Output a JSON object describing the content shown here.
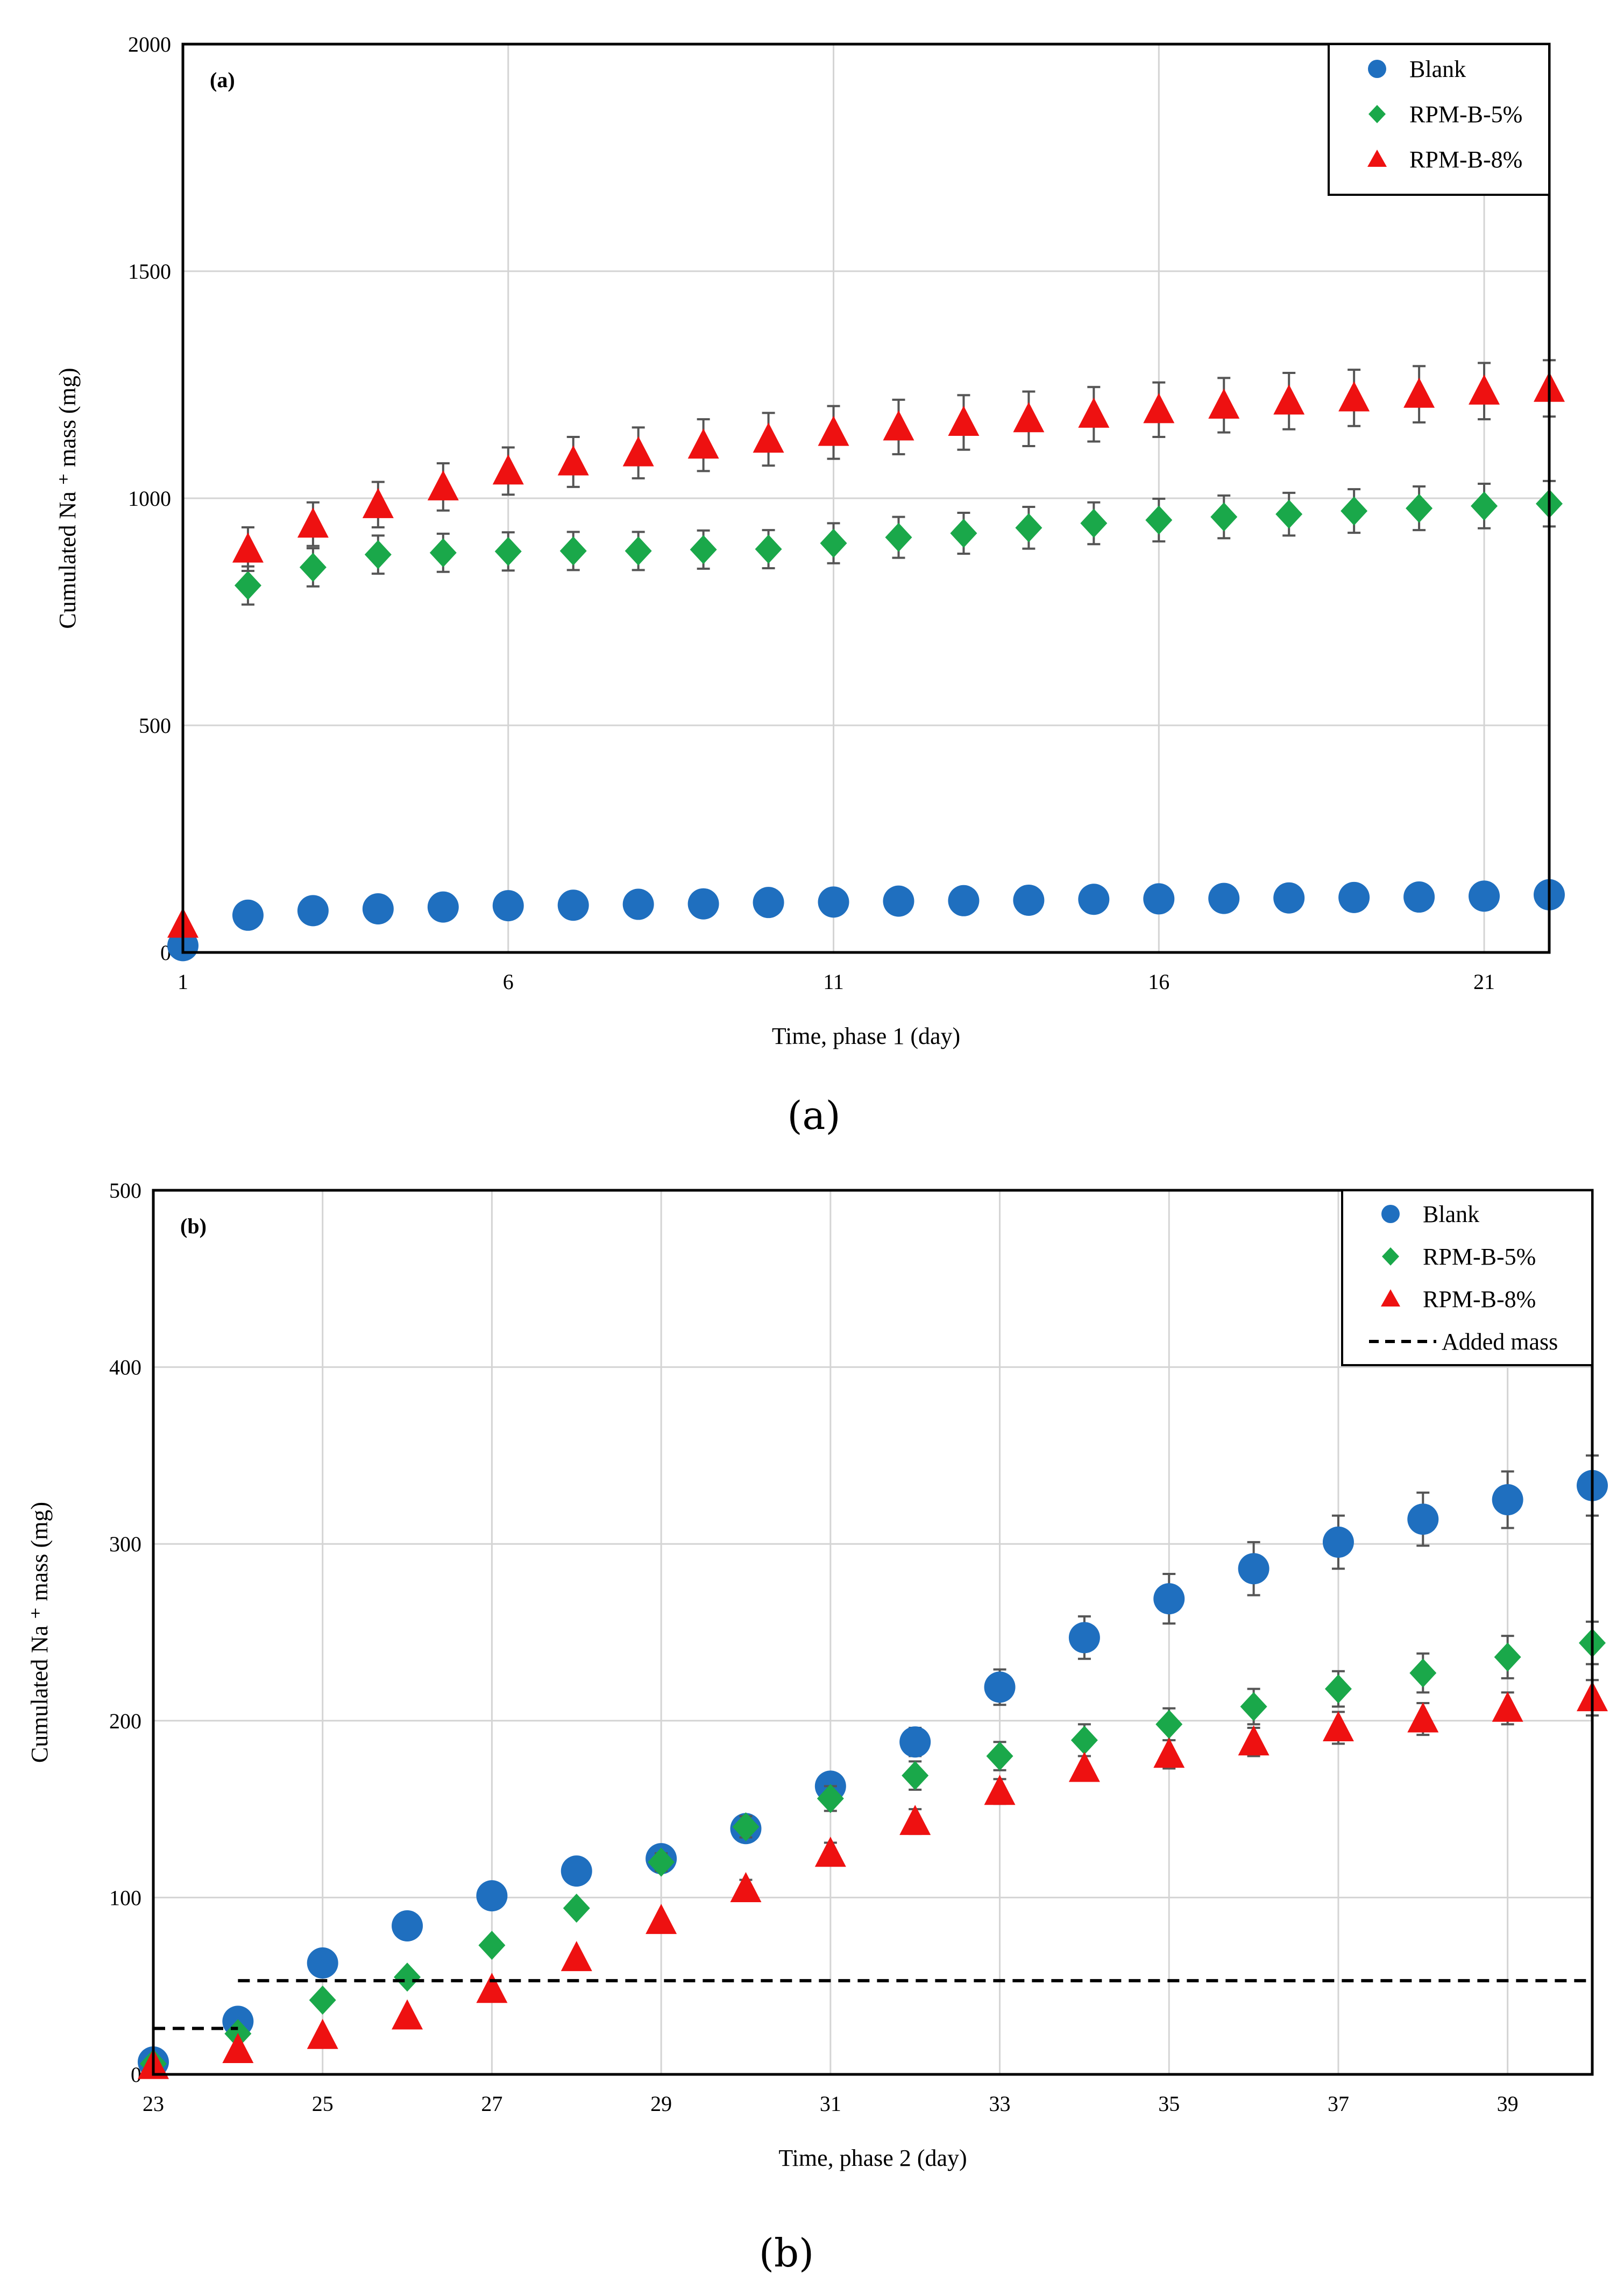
{
  "chart_data": [
    {
      "type": "scatter",
      "panel_label": "(a)",
      "caption": "(a)",
      "xlabel": "Time,  phase 1 (day)",
      "ylabel": "Cumulated Na ⁺ mass (mg)",
      "xlim": [
        1,
        22
      ],
      "ylim": [
        0,
        2000
      ],
      "xticks": [
        1,
        6,
        11,
        16,
        21
      ],
      "yticks": [
        0,
        500,
        1000,
        1500,
        2000
      ],
      "grid": true,
      "legend_position": "top-right",
      "series": [
        {
          "name": "Blank",
          "marker": "circle",
          "color": "#1f6fbf",
          "x": [
            1,
            2,
            3,
            4,
            5,
            6,
            7,
            8,
            9,
            10,
            11,
            12,
            13,
            14,
            15,
            16,
            17,
            18,
            19,
            20,
            21,
            22
          ],
          "y": [
            15,
            82,
            92,
            96,
            100,
            103,
            104,
            106,
            107,
            110,
            111,
            113,
            114,
            115,
            117,
            118,
            119,
            120,
            121,
            122,
            124,
            127
          ],
          "err": [
            0,
            0,
            0,
            0,
            0,
            0,
            0,
            0,
            0,
            0,
            0,
            0,
            0,
            0,
            0,
            0,
            0,
            0,
            0,
            0,
            0,
            0
          ]
        },
        {
          "name": "RPM-B-5%",
          "marker": "diamond",
          "color": "#1aa84a",
          "x": [
            2,
            3,
            4,
            5,
            6,
            7,
            8,
            9,
            10,
            11,
            12,
            13,
            14,
            15,
            16,
            17,
            18,
            19,
            20,
            21,
            22
          ],
          "y": [
            808,
            848,
            876,
            880,
            883,
            884,
            884,
            887,
            888,
            901,
            914,
            923,
            935,
            945,
            952,
            959,
            965,
            972,
            978,
            983,
            988
          ],
          "err": [
            42,
            42,
            42,
            42,
            42,
            42,
            42,
            42,
            42,
            44,
            45,
            45,
            46,
            46,
            47,
            47,
            47,
            48,
            48,
            49,
            50
          ]
        },
        {
          "name": "RPM-B-8%",
          "marker": "triangle",
          "color": "#ee1111",
          "x": [
            1,
            2,
            3,
            4,
            5,
            6,
            7,
            8,
            9,
            10,
            11,
            12,
            13,
            14,
            15,
            16,
            17,
            18,
            19,
            20,
            21,
            22
          ],
          "y": [
            62,
            888,
            943,
            986,
            1025,
            1060,
            1080,
            1100,
            1117,
            1130,
            1145,
            1157,
            1167,
            1175,
            1185,
            1195,
            1205,
            1214,
            1221,
            1229,
            1236,
            1242
          ],
          "err": [
            0,
            48,
            48,
            50,
            52,
            52,
            55,
            56,
            57,
            58,
            58,
            60,
            60,
            60,
            60,
            60,
            60,
            62,
            62,
            62,
            62,
            62
          ]
        }
      ]
    },
    {
      "type": "scatter",
      "panel_label": "(b)",
      "caption": "(b)",
      "xlabel": "Time,  phase 2 (day)",
      "ylabel": "Cumulated Na ⁺ mass (mg)",
      "xlim": [
        23,
        40
      ],
      "ylim": [
        0,
        500
      ],
      "xticks": [
        23,
        25,
        27,
        29,
        31,
        33,
        35,
        37,
        39
      ],
      "yticks": [
        0,
        100,
        200,
        300,
        400,
        500
      ],
      "grid": true,
      "legend_position": "top-right",
      "series": [
        {
          "name": "Blank",
          "marker": "circle",
          "color": "#1f6fbf",
          "x": [
            23,
            24,
            25,
            26,
            27,
            28,
            29,
            30,
            31,
            32,
            33,
            34,
            35,
            36,
            37,
            38,
            39,
            40
          ],
          "y": [
            7,
            30,
            63,
            84,
            101,
            115,
            122,
            139,
            163,
            188,
            219,
            247,
            269,
            286,
            301,
            314,
            325,
            333
          ],
          "err": [
            0,
            0,
            0,
            0,
            0,
            0,
            4,
            5,
            6,
            8,
            10,
            12,
            14,
            15,
            15,
            15,
            16,
            17
          ]
        },
        {
          "name": "RPM-B-5%",
          "marker": "diamond",
          "color": "#1aa84a",
          "x": [
            23,
            24,
            25,
            26,
            27,
            28,
            29,
            30,
            31,
            32,
            33,
            34,
            35,
            36,
            37,
            38,
            39,
            40
          ],
          "y": [
            6,
            23,
            42,
            55,
            73,
            94,
            120,
            140,
            156,
            169,
            180,
            189,
            198,
            208,
            218,
            227,
            236,
            244
          ],
          "err": [
            0,
            0,
            0,
            0,
            0,
            0,
            5,
            6,
            7,
            8,
            8,
            9,
            9,
            10,
            10,
            11,
            12,
            12
          ]
        },
        {
          "name": "RPM-B-8%",
          "marker": "triangle",
          "color": "#ee1111",
          "x": [
            23,
            24,
            25,
            26,
            27,
            28,
            29,
            30,
            31,
            32,
            33,
            34,
            35,
            36,
            37,
            38,
            39,
            40
          ],
          "y": [
            5,
            14,
            22,
            33,
            48,
            66,
            87,
            105,
            125,
            143,
            160,
            173,
            181,
            188,
            196,
            201,
            207,
            213
          ],
          "err": [
            0,
            0,
            0,
            0,
            0,
            0,
            0,
            5,
            6,
            7,
            7,
            7,
            8,
            8,
            9,
            9,
            9,
            10
          ]
        },
        {
          "name": "Added mass",
          "style": "dashed",
          "color": "#000000",
          "segments": [
            {
              "x": [
                23,
                24
              ],
              "y": [
                26,
                26
              ]
            },
            {
              "x": [
                24,
                40
              ],
              "y": [
                53,
                53
              ]
            }
          ]
        }
      ]
    }
  ]
}
